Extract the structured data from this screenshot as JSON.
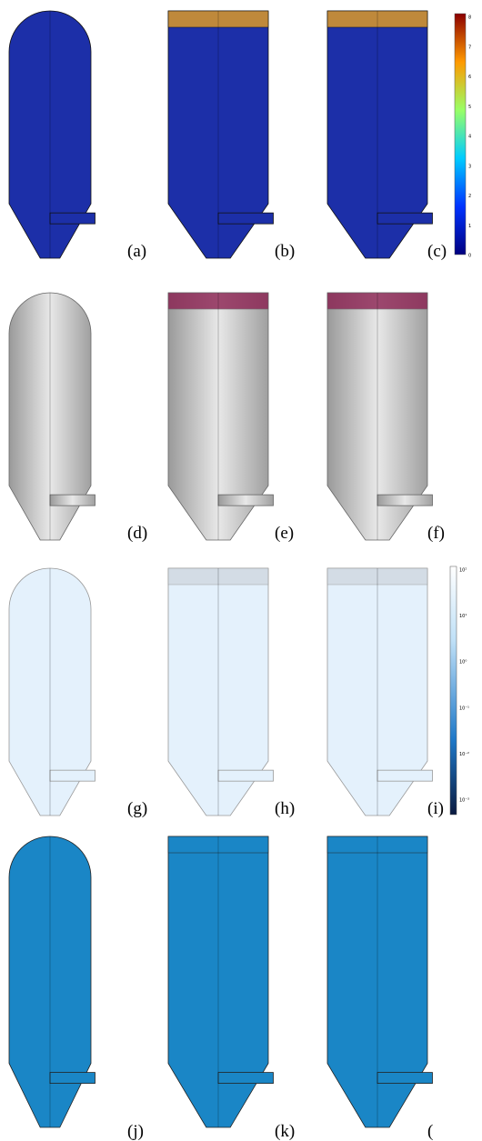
{
  "panels": [
    {
      "label": "(a)"
    },
    {
      "label": "(b)"
    },
    {
      "label": "(c)"
    },
    {
      "label": "(d)"
    },
    {
      "label": "(e)"
    },
    {
      "label": "(f)"
    },
    {
      "label": "(g)"
    },
    {
      "label": "(h)"
    },
    {
      "label": "(i)"
    },
    {
      "label": "(j)"
    },
    {
      "label": "(k)"
    },
    {
      "label": "("
    }
  ],
  "colorbars": [
    {
      "ticks": [
        "8",
        "7",
        "6",
        "5",
        "4",
        "3",
        "2",
        "1",
        "0"
      ]
    },
    {
      "ticks": [
        "10²",
        "10¹",
        "10⁰",
        "10⁻¹",
        "10⁻²",
        "10⁻³"
      ]
    }
  ]
}
